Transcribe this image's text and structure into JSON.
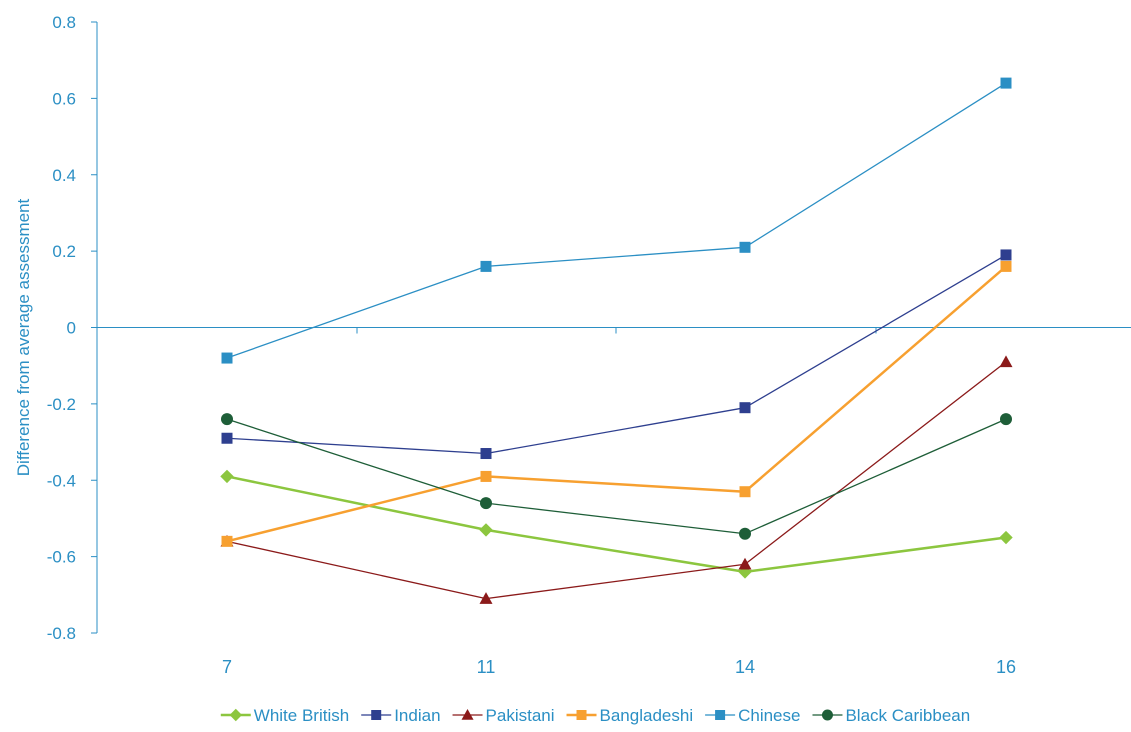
{
  "chart_data": {
    "type": "line",
    "title": "",
    "xlabel": "",
    "ylabel": "Difference from average assessment",
    "categories": [
      "7",
      "11",
      "14",
      "16"
    ],
    "ylim": [
      -0.8,
      0.8
    ],
    "yticks": [
      0.8,
      0.6,
      0.4,
      0.2,
      0,
      -0.2,
      -0.4,
      -0.6,
      -0.8
    ],
    "ytick_labels": [
      "0.8",
      "0.6",
      "0.4",
      "0.2",
      "0",
      "-0.2",
      "-0.4",
      "-0.6",
      "-0.8"
    ],
    "grid": false,
    "legend_position": "bottom",
    "axis_color": "#2b8fc4",
    "series": [
      {
        "name": "White British",
        "values": [
          -0.39,
          -0.53,
          -0.64,
          -0.55
        ],
        "color": "#8cc63f",
        "marker": "diamond",
        "line_width": 2.5
      },
      {
        "name": "Indian",
        "values": [
          -0.29,
          -0.33,
          -0.21,
          0.19
        ],
        "color": "#2e3f8f",
        "marker": "square",
        "line_width": 1.3
      },
      {
        "name": "Pakistani",
        "values": [
          -0.56,
          -0.71,
          -0.62,
          -0.09
        ],
        "color": "#8b1a1a",
        "marker": "triangle",
        "line_width": 1.3
      },
      {
        "name": "Bangladeshi",
        "values": [
          -0.56,
          -0.39,
          -0.43,
          0.16
        ],
        "color": "#f7a030",
        "marker": "square",
        "line_width": 2.5
      },
      {
        "name": "Chinese",
        "values": [
          -0.08,
          0.16,
          0.21,
          0.64
        ],
        "color": "#2b8fc4",
        "marker": "square",
        "line_width": 1.3
      },
      {
        "name": "Black Caribbean",
        "values": [
          -0.24,
          -0.46,
          -0.54,
          -0.24
        ],
        "color": "#1e5e38",
        "marker": "circle",
        "line_width": 1.3
      }
    ]
  }
}
